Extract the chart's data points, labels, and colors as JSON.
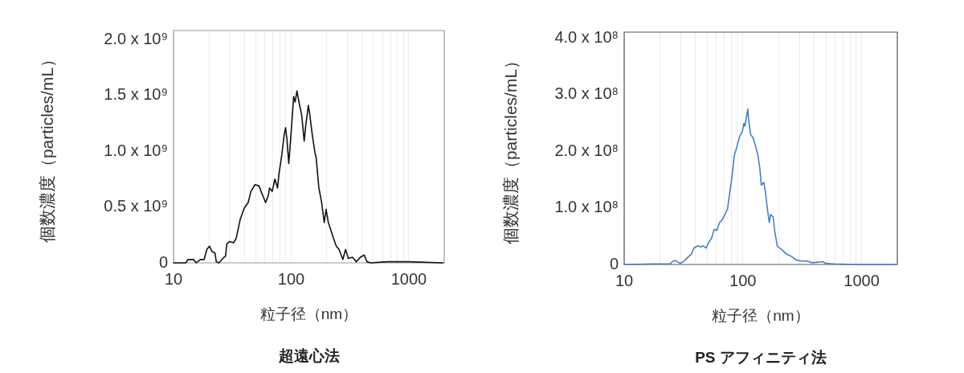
{
  "chart_data": [
    {
      "type": "line",
      "title": "超遠心法",
      "xlabel": "粒子径（nm）",
      "ylabel": "個数濃度（particles/mL）",
      "log": "x",
      "grid": "x",
      "color": "#111111",
      "xlim": [
        10,
        2000
      ],
      "xticks": [
        10,
        {
          "value": 20,
          "label": null
        },
        {
          "value": 30,
          "label": null
        },
        {
          "value": 40,
          "label": null
        },
        {
          "value": 50,
          "label": null
        },
        {
          "value": 60,
          "label": null
        },
        {
          "value": 70,
          "label": null
        },
        {
          "value": 80,
          "label": null
        },
        {
          "value": 90,
          "label": null
        },
        100,
        {
          "value": 200,
          "label": null
        },
        {
          "value": 300,
          "label": null
        },
        {
          "value": 400,
          "label": null
        },
        {
          "value": 500,
          "label": null
        },
        {
          "value": 600,
          "label": null
        },
        {
          "value": 700,
          "label": null
        },
        {
          "value": 800,
          "label": null
        },
        {
          "value": 900,
          "label": null
        },
        1000
      ],
      "ylim": [
        0,
        2080000000.0
      ],
      "yticks": [
        0,
        {
          "value": 500000000.0,
          "label": "0.5 x 10⁹"
        },
        {
          "value": 1000000000.0,
          "label": "1.0 x 10⁹"
        },
        {
          "value": 1500000000.0,
          "label": "1.5 x 10⁹"
        },
        {
          "value": 2000000000.0,
          "label": "2.0 x 10⁹"
        }
      ],
      "x": [
        10,
        12.7,
        13.3,
        14.8,
        15.6,
        16.9,
        18.2,
        19.2,
        20.2,
        21.3,
        22.5,
        23.1,
        24.3,
        26.3,
        27.7,
        28.4,
        29.9,
        32.4,
        34.1,
        36.9,
        39.9,
        43.1,
        45.5,
        49.2,
        53.2,
        56,
        60.6,
        63.8,
        65.5,
        69,
        72.7,
        76.6,
        78.6,
        82.8,
        87.3,
        89.6,
        92,
        95.4,
        99.5,
        105,
        108,
        112,
        116,
        123,
        129,
        133,
        140,
        143,
        151,
        159,
        163,
        172,
        181,
        191,
        198,
        207,
        218,
        229,
        242,
        255,
        275,
        290,
        306,
        331,
        358,
        387,
        418,
        441,
        476,
        652,
        762,
        990,
        1950
      ],
      "values": [
        0,
        0,
        30000000.0,
        30000000.0,
        0,
        30000000.0,
        30000000.0,
        120000000.0,
        150000000.0,
        100000000.0,
        90000000.0,
        10000000.0,
        0,
        40000000.0,
        60000000.0,
        170000000.0,
        190000000.0,
        180000000.0,
        220000000.0,
        390000000.0,
        490000000.0,
        540000000.0,
        640000000.0,
        700000000.0,
        690000000.0,
        630000000.0,
        540000000.0,
        600000000.0,
        670000000.0,
        640000000.0,
        750000000.0,
        670000000.0,
        790000000.0,
        950000000.0,
        1150000000.0,
        1210000000.0,
        1110000000.0,
        890000000.0,
        1140000000.0,
        1490000000.0,
        1440000000.0,
        1540000000.0,
        1450000000.0,
        1320000000.0,
        1090000000.0,
        1230000000.0,
        1410000000.0,
        1350000000.0,
        1150000000.0,
        990000000.0,
        940000000.0,
        670000000.0,
        550000000.0,
        360000000.0,
        480000000.0,
        360000000.0,
        290000000.0,
        220000000.0,
        150000000.0,
        120000000.0,
        30000000.0,
        120000000.0,
        40000000.0,
        50000000.0,
        10000000.0,
        50000000.0,
        70000000.0,
        10000000.0,
        0,
        10000000.0,
        10000000.0,
        10000000.0,
        0
      ]
    },
    {
      "type": "line",
      "title": "PS アフィニティ法",
      "xlabel": "粒子径（nm）",
      "ylabel": "個数濃度（particles/mL）",
      "log": "x",
      "grid": "x",
      "color": "#4a7fc1",
      "xlim": [
        10,
        2000
      ],
      "xticks": [
        10,
        {
          "value": 20,
          "label": null
        },
        {
          "value": 30,
          "label": null
        },
        {
          "value": 40,
          "label": null
        },
        {
          "value": 50,
          "label": null
        },
        {
          "value": 60,
          "label": null
        },
        {
          "value": 70,
          "label": null
        },
        {
          "value": 80,
          "label": null
        },
        {
          "value": 90,
          "label": null
        },
        100,
        {
          "value": 200,
          "label": null
        },
        {
          "value": 300,
          "label": null
        },
        {
          "value": 400,
          "label": null
        },
        {
          "value": 500,
          "label": null
        },
        {
          "value": 600,
          "label": null
        },
        {
          "value": 700,
          "label": null
        },
        {
          "value": 800,
          "label": null
        },
        {
          "value": 900,
          "label": null
        },
        1000
      ],
      "ylim": [
        0,
        410000000.0
      ],
      "yticks": [
        0,
        {
          "value": 100000000.0,
          "label": "1.0 x 10⁸"
        },
        {
          "value": 200000000.0,
          "label": "2.0 x 10⁸"
        },
        {
          "value": 300000000.0,
          "label": "3.0 x 10⁸"
        },
        {
          "value": 400000000.0,
          "label": "4.0 x 10⁸"
        }
      ],
      "x": [
        10,
        17.7,
        24.3,
        25.8,
        26.9,
        28.4,
        29.9,
        32.3,
        34.9,
        36.8,
        38.7,
        41.9,
        44.1,
        46.5,
        49,
        51.6,
        54.4,
        57.3,
        60.3,
        63.6,
        67,
        70.5,
        74.3,
        76.3,
        80.4,
        84.6,
        89.2,
        94,
        99,
        102,
        104,
        107,
        110,
        112,
        116,
        122,
        128,
        134,
        139,
        143,
        150,
        154,
        162,
        167,
        171,
        180,
        185,
        195,
        205,
        216,
        234,
        253,
        281,
        311,
        346,
        384,
        472,
        498,
        582,
        838,
        1980
      ],
      "values": [
        0,
        1000000.0,
        1000000.0,
        6000000.0,
        7000000.0,
        4000000.0,
        2000000.0,
        7000000.0,
        14000000.0,
        18000000.0,
        29000000.0,
        33000000.0,
        31000000.0,
        33000000.0,
        29000000.0,
        39000000.0,
        46000000.0,
        62000000.0,
        60000000.0,
        74000000.0,
        79000000.0,
        88000000.0,
        98000000.0,
        117000000.0,
        150000000.0,
        192000000.0,
        209000000.0,
        226000000.0,
        235000000.0,
        249000000.0,
        244000000.0,
        259000000.0,
        274000000.0,
        254000000.0,
        230000000.0,
        223000000.0,
        209000000.0,
        192000000.0,
        169000000.0,
        140000000.0,
        145000000.0,
        131000000.0,
        93000000.0,
        74000000.0,
        88000000.0,
        84000000.0,
        60000000.0,
        32000000.0,
        29000000.0,
        25000000.0,
        18000000.0,
        15000000.0,
        8000000.0,
        6000000.0,
        6000000.0,
        3000000.0,
        5000000.0,
        2000000.0,
        1000000.0,
        0,
        0
      ]
    }
  ]
}
